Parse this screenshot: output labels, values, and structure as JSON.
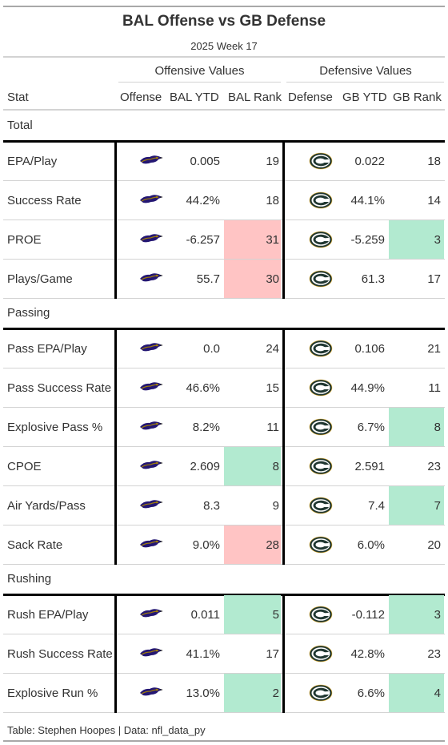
{
  "title": "BAL Offense vs GB Defense",
  "subtitle": "2025 Week 17",
  "spanners": {
    "offense": "Offensive Values",
    "defense": "Defensive Values"
  },
  "columns": [
    "Stat",
    "Offense",
    "BAL YTD",
    "BAL Rank",
    "Defense",
    "GB YTD",
    "GB Rank"
  ],
  "colors": {
    "good": "#b2ead0",
    "bad": "#ffc4c4",
    "bal_purple": "#241773",
    "gb_green": "#203731",
    "gb_gold": "#ffb612"
  },
  "groups": [
    {
      "name": "Total",
      "rows": [
        {
          "stat": "EPA/Play",
          "bal_ytd": "0.005",
          "bal_rank": "19",
          "bal_flag": "",
          "gb_ytd": "0.022",
          "gb_rank": "18",
          "gb_flag": ""
        },
        {
          "stat": "Success Rate",
          "bal_ytd": "44.2%",
          "bal_rank": "18",
          "bal_flag": "",
          "gb_ytd": "44.1%",
          "gb_rank": "14",
          "gb_flag": ""
        },
        {
          "stat": "PROE",
          "bal_ytd": "-6.257",
          "bal_rank": "31",
          "bal_flag": "bad",
          "gb_ytd": "-5.259",
          "gb_rank": "3",
          "gb_flag": "good"
        },
        {
          "stat": "Plays/Game",
          "bal_ytd": "55.7",
          "bal_rank": "30",
          "bal_flag": "bad",
          "gb_ytd": "61.3",
          "gb_rank": "17",
          "gb_flag": ""
        }
      ]
    },
    {
      "name": "Passing",
      "rows": [
        {
          "stat": "Pass EPA/Play",
          "bal_ytd": "0.0",
          "bal_rank": "24",
          "bal_flag": "",
          "gb_ytd": "0.106",
          "gb_rank": "21",
          "gb_flag": ""
        },
        {
          "stat": "Pass Success Rate",
          "bal_ytd": "46.6%",
          "bal_rank": "15",
          "bal_flag": "",
          "gb_ytd": "44.9%",
          "gb_rank": "11",
          "gb_flag": ""
        },
        {
          "stat": "Explosive Pass %",
          "bal_ytd": "8.2%",
          "bal_rank": "11",
          "bal_flag": "",
          "gb_ytd": "6.7%",
          "gb_rank": "8",
          "gb_flag": "good"
        },
        {
          "stat": "CPOE",
          "bal_ytd": "2.609",
          "bal_rank": "8",
          "bal_flag": "good",
          "gb_ytd": "2.591",
          "gb_rank": "23",
          "gb_flag": ""
        },
        {
          "stat": "Air Yards/Pass",
          "bal_ytd": "8.3",
          "bal_rank": "9",
          "bal_flag": "",
          "gb_ytd": "7.4",
          "gb_rank": "7",
          "gb_flag": "good"
        },
        {
          "stat": "Sack Rate",
          "bal_ytd": "9.0%",
          "bal_rank": "28",
          "bal_flag": "bad",
          "gb_ytd": "6.0%",
          "gb_rank": "20",
          "gb_flag": ""
        }
      ]
    },
    {
      "name": "Rushing",
      "rows": [
        {
          "stat": "Rush EPA/Play",
          "bal_ytd": "0.011",
          "bal_rank": "5",
          "bal_flag": "good",
          "gb_ytd": "-0.112",
          "gb_rank": "3",
          "gb_flag": "good"
        },
        {
          "stat": "Rush Success Rate",
          "bal_ytd": "41.1%",
          "bal_rank": "17",
          "bal_flag": "",
          "gb_ytd": "42.8%",
          "gb_rank": "23",
          "gb_flag": ""
        },
        {
          "stat": "Explosive Run %",
          "bal_ytd": "13.0%",
          "bal_rank": "2",
          "bal_flag": "good",
          "gb_ytd": "6.6%",
          "gb_rank": "4",
          "gb_flag": "good"
        }
      ]
    }
  ],
  "footer": "Table: Stephen Hoopes | Data: nfl_data_py",
  "chart_data": {
    "type": "table",
    "title": "BAL Offense vs GB Defense",
    "subtitle": "2025 Week 17",
    "columns": [
      "Stat",
      "Offense",
      "BAL YTD",
      "BAL Rank",
      "Defense",
      "GB YTD",
      "GB Rank"
    ],
    "rows": [
      [
        "EPA/Play",
        "BAL",
        "0.005",
        19,
        "GB",
        "0.022",
        18
      ],
      [
        "Success Rate",
        "BAL",
        "44.2%",
        18,
        "GB",
        "44.1%",
        14
      ],
      [
        "PROE",
        "BAL",
        "-6.257",
        31,
        "GB",
        "-5.259",
        3
      ],
      [
        "Plays/Game",
        "BAL",
        "55.7",
        30,
        "GB",
        "61.3",
        17
      ],
      [
        "Pass EPA/Play",
        "BAL",
        "0.0",
        24,
        "GB",
        "0.106",
        21
      ],
      [
        "Pass Success Rate",
        "BAL",
        "46.6%",
        15,
        "GB",
        "44.9%",
        11
      ],
      [
        "Explosive Pass %",
        "BAL",
        "8.2%",
        11,
        "GB",
        "6.7%",
        8
      ],
      [
        "CPOE",
        "BAL",
        "2.609",
        8,
        "GB",
        "2.591",
        23
      ],
      [
        "Air Yards/Pass",
        "BAL",
        "8.3",
        9,
        "GB",
        "7.4",
        7
      ],
      [
        "Sack Rate",
        "BAL",
        "9.0%",
        28,
        "GB",
        "6.0%",
        20
      ],
      [
        "Rush EPA/Play",
        "BAL",
        "0.011",
        5,
        "GB",
        "-0.112",
        3
      ],
      [
        "Rush Success Rate",
        "BAL",
        "41.1%",
        17,
        "GB",
        "42.8%",
        23
      ],
      [
        "Explosive Run %",
        "BAL",
        "13.0%",
        2,
        "GB",
        "6.6%",
        4
      ]
    ]
  }
}
